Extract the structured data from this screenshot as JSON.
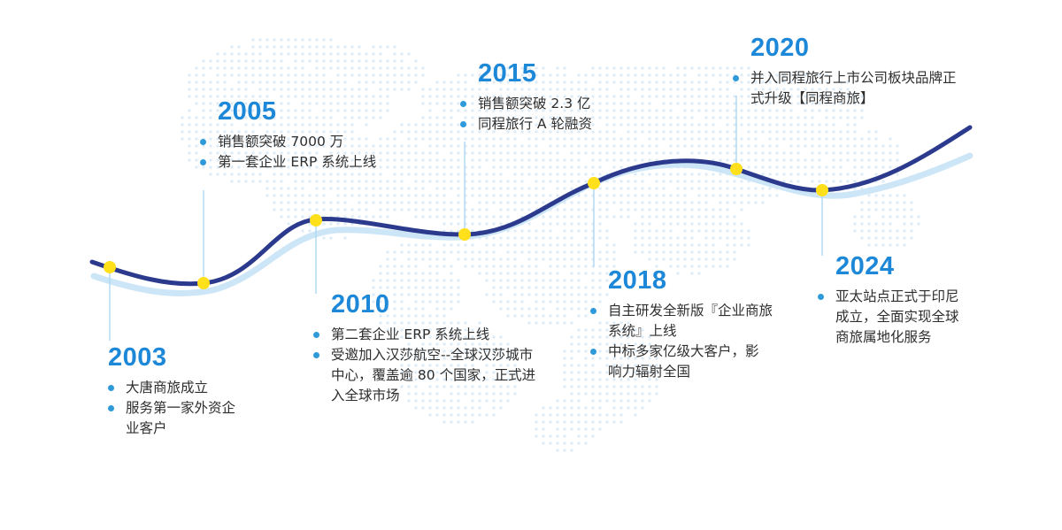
{
  "colors": {
    "year": "#1e88d8",
    "main_curve": "#2b3a8c",
    "shadow_curve": "#cde6f7",
    "marker": "#ffe01a",
    "connector": "#a9d6f2",
    "bullet": "#2f9ad9",
    "map_dots": "#dcebf7",
    "text": "#2e2e2e"
  },
  "milestones": [
    {
      "year": "2003",
      "items": [
        "大唐商旅成立",
        "服务第一家外资企业客户"
      ]
    },
    {
      "year": "2005",
      "items": [
        "销售额突破 7000 万",
        "第一套企业 ERP 系统上线"
      ]
    },
    {
      "year": "2010",
      "items": [
        "第二套企业 ERP 系统上线",
        "受邀加入汉莎航空--全球汉莎城市中心，覆盖逾 80 个国家，正式进入全球市场"
      ]
    },
    {
      "year": "2015",
      "items": [
        "销售额突破 2.3 亿",
        "同程旅行 A 轮融资"
      ]
    },
    {
      "year": "2018",
      "items": [
        "自主研发全新版『企业商旅系统』上线",
        "中标多家亿级大客户，影响力辐射全国"
      ]
    },
    {
      "year": "2020",
      "items": [
        "并入同程旅行上市公司板块品牌正式升级【同程商旅】"
      ]
    },
    {
      "year": "2024",
      "items": [
        "亚太站点正式于印尼成立，全面实现全球商旅属地化服务"
      ]
    }
  ]
}
